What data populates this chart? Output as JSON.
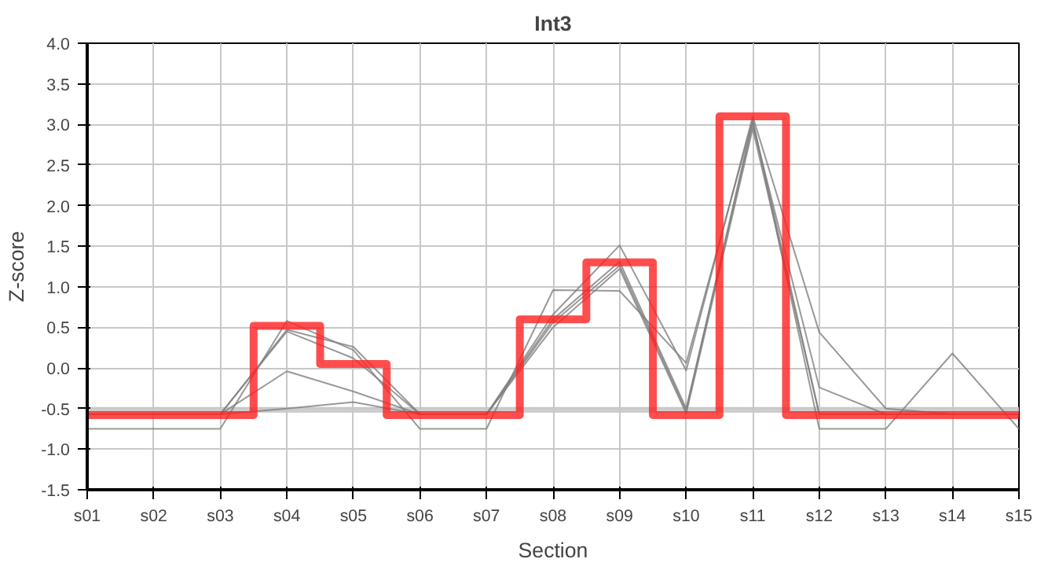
{
  "chart_data": {
    "type": "line",
    "title": "Int3",
    "xlabel": "Section",
    "ylabel": "Z-score",
    "categories": [
      "s01",
      "s02",
      "s03",
      "s04",
      "s05",
      "s06",
      "s07",
      "s08",
      "s09",
      "s10",
      "s11",
      "s12",
      "s13",
      "s14",
      "s15"
    ],
    "ylim": [
      -1.5,
      4.0
    ],
    "yticks": [
      {
        "value": -1.5,
        "label": "-1.5"
      },
      {
        "value": -1.0,
        "label": "-1.0"
      },
      {
        "value": -0.5,
        "label": "-0.5"
      },
      {
        "value": 0,
        "label": "0.0"
      },
      {
        "value": 0.5,
        "label": "0.5"
      },
      {
        "value": 1.0,
        "label": "1.0"
      },
      {
        "value": 1.5,
        "label": "1.5"
      },
      {
        "value": 2.0,
        "label": "2.0"
      },
      {
        "value": 2.5,
        "label": "2.5"
      },
      {
        "value": 3.0,
        "label": "3.0"
      },
      {
        "value": 3.5,
        "label": "3.5"
      },
      {
        "value": 4.0,
        "label": "4.0"
      }
    ],
    "grid": true,
    "marker": "none",
    "bands": [
      {
        "axis": "y",
        "from": -0.55,
        "to": -0.48,
        "color": "#c8c8c8"
      }
    ],
    "series": [
      {
        "color": "#808080",
        "values": [
          -0.75,
          -0.75,
          -0.75,
          0.58,
          0.22,
          -0.75,
          -0.75,
          0.96,
          0.95,
          0.06,
          3.05,
          -0.75,
          -0.75,
          0.18,
          -0.75
        ]
      },
      {
        "color": "#808080",
        "values": [
          -0.57,
          -0.57,
          -0.57,
          0.47,
          0.26,
          -0.57,
          -0.57,
          0.66,
          1.51,
          -0.03,
          3.1,
          0.44,
          -0.5,
          -0.57,
          -0.57
        ]
      },
      {
        "color": "#808080",
        "values": [
          -0.57,
          -0.57,
          -0.57,
          0.45,
          0.12,
          -0.57,
          -0.57,
          0.6,
          1.31,
          -0.5,
          3.0,
          -0.24,
          -0.57,
          -0.57,
          -0.57
        ]
      },
      {
        "color": "#808080",
        "values": [
          -0.57,
          -0.57,
          -0.57,
          -0.04,
          -0.29,
          -0.57,
          -0.57,
          0.56,
          1.26,
          -0.53,
          3.05,
          -0.57,
          -0.57,
          -0.57,
          -0.57
        ]
      },
      {
        "color": "#808080",
        "values": [
          -0.57,
          -0.57,
          -0.57,
          -0.5,
          -0.42,
          -0.57,
          -0.57,
          0.5,
          1.22,
          -0.56,
          2.95,
          -0.57,
          -0.57,
          -0.57,
          -0.57
        ]
      },
      {
        "type": "step",
        "color": "#ff2020",
        "values": [
          -0.58,
          -0.58,
          -0.58,
          0.52,
          0.05,
          -0.58,
          -0.58,
          0.6,
          1.3,
          -0.58,
          3.1,
          -0.58,
          -0.58,
          -0.58,
          -0.58
        ]
      }
    ]
  }
}
